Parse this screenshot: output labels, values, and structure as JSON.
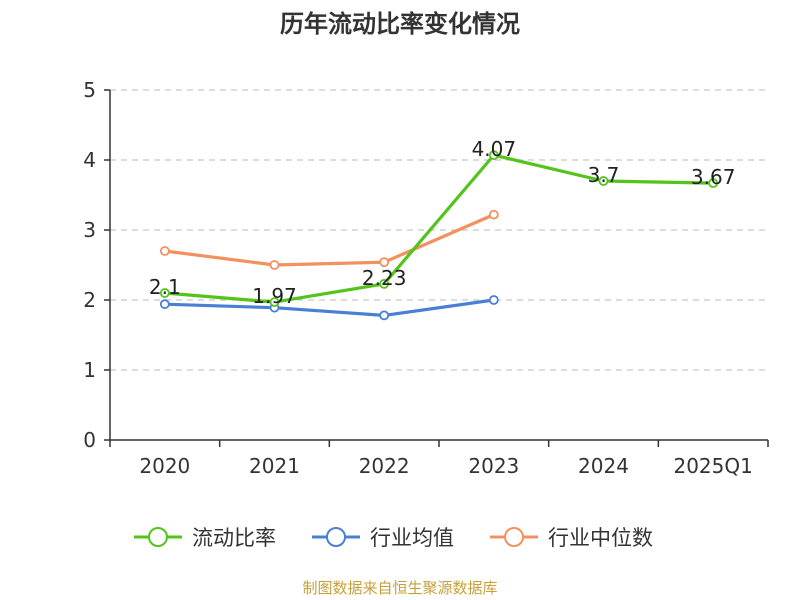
{
  "chart_data": {
    "type": "line",
    "title": "历年流动比率变化情况",
    "categories": [
      "2020",
      "2021",
      "2022",
      "2023",
      "2024",
      "2025Q1"
    ],
    "ylim": [
      0,
      5
    ],
    "yticks": [
      0,
      1,
      2,
      3,
      4,
      5
    ],
    "grid": true,
    "legend_position": "bottom",
    "series": [
      {
        "name": "流动比率",
        "color": "#52c41a",
        "values": [
          2.1,
          1.97,
          2.23,
          4.07,
          3.7,
          3.67
        ],
        "labels": [
          "2.1",
          "1.97",
          "2.23",
          "4.07",
          "3.7",
          "3.67"
        ]
      },
      {
        "name": "行业均值",
        "color": "#4a7fd6",
        "values": [
          1.94,
          1.89,
          1.78,
          2.0,
          null,
          null
        ]
      },
      {
        "name": "行业中位数",
        "color": "#f39060",
        "values": [
          2.7,
          2.5,
          2.54,
          3.22,
          null,
          null
        ]
      }
    ]
  },
  "source": "制图数据来自恒生聚源数据库"
}
